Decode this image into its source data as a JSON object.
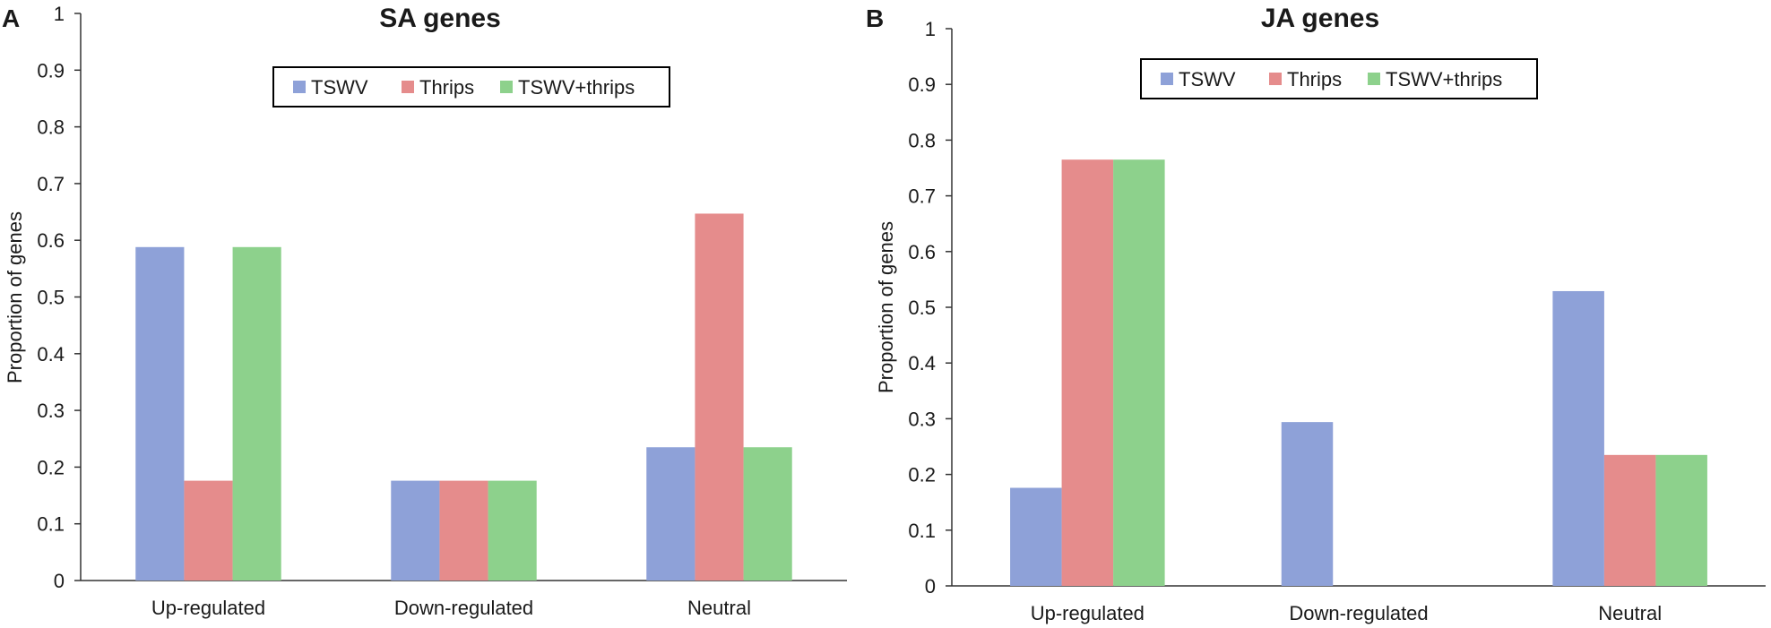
{
  "colors": {
    "TSWV": "#8ea1d8",
    "Thrips": "#e58c8c",
    "TSWV+thrips": "#8dd18c"
  },
  "chart_data": [
    {
      "panel": "A",
      "type": "bar",
      "title": "SA genes",
      "ylabel": "Proportion of genes",
      "xlabel": "",
      "ylim": [
        0,
        1
      ],
      "yticks": [
        "0",
        "0.1",
        "0.2",
        "0.3",
        "0.4",
        "0.5",
        "0.6",
        "0.7",
        "0.8",
        "0.9",
        "1"
      ],
      "categories": [
        "Up-regulated",
        "Down-regulated",
        "Neutral"
      ],
      "legend_position": "top-center",
      "series": [
        {
          "name": "TSWV",
          "values": [
            0.588,
            0.176,
            0.235
          ]
        },
        {
          "name": "Thrips",
          "values": [
            0.176,
            0.176,
            0.647
          ]
        },
        {
          "name": "TSWV+thrips",
          "values": [
            0.588,
            0.176,
            0.235
          ]
        }
      ]
    },
    {
      "panel": "B",
      "type": "bar",
      "title": "JA genes",
      "ylabel": "Proportion of genes",
      "xlabel": "",
      "ylim": [
        0,
        1
      ],
      "yticks": [
        "0",
        "0.1",
        "0.2",
        "0.3",
        "0.4",
        "0.5",
        "0.6",
        "0.7",
        "0.8",
        "0.9",
        "1"
      ],
      "categories": [
        "Up-regulated",
        "Down-regulated",
        "Neutral"
      ],
      "legend_position": "top-center",
      "series": [
        {
          "name": "TSWV",
          "values": [
            0.176,
            0.294,
            0.529
          ]
        },
        {
          "name": "Thrips",
          "values": [
            0.765,
            0,
            0.235
          ]
        },
        {
          "name": "TSWV+thrips",
          "values": [
            0.765,
            0,
            0.235
          ]
        }
      ]
    }
  ]
}
